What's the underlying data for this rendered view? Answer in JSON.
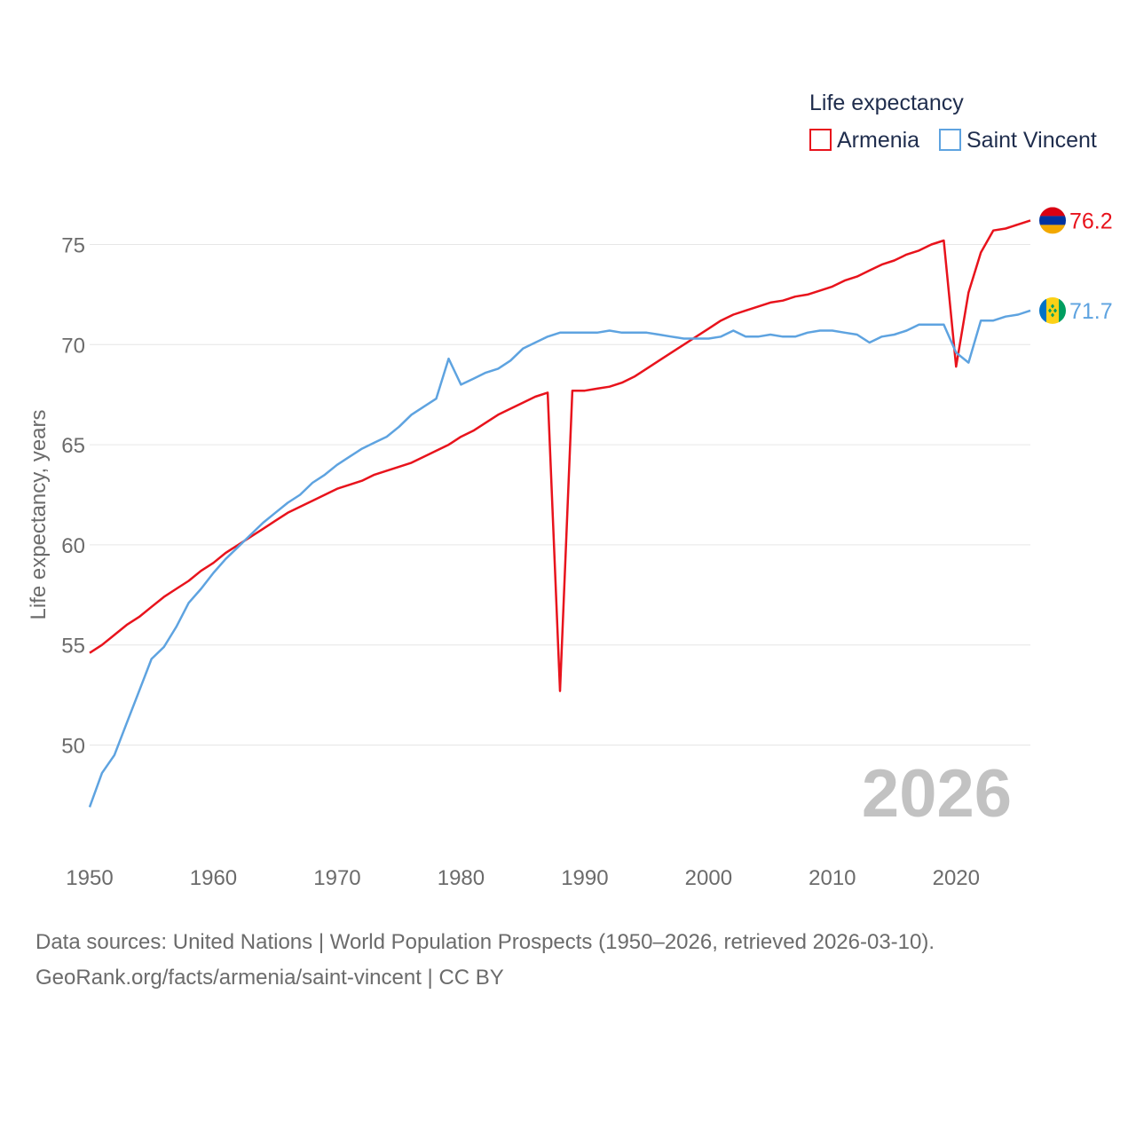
{
  "chart_data": {
    "type": "line",
    "legend_title": "Life expectancy",
    "ylabel": "Life expectancy, years",
    "xlabel": "",
    "current_year": "2026",
    "x_ticks": [
      1950,
      1960,
      1970,
      1980,
      1990,
      2000,
      2010,
      2020
    ],
    "y_ticks": [
      50,
      55,
      60,
      65,
      70,
      75
    ],
    "xlim": [
      1950,
      2026
    ],
    "ylim": [
      45.5,
      77.5
    ],
    "grid": true,
    "legend_position": "top-right",
    "x": [
      1950,
      1951,
      1952,
      1953,
      1954,
      1955,
      1956,
      1957,
      1958,
      1959,
      1960,
      1961,
      1962,
      1963,
      1964,
      1965,
      1966,
      1967,
      1968,
      1969,
      1970,
      1971,
      1972,
      1973,
      1974,
      1975,
      1976,
      1977,
      1978,
      1979,
      1980,
      1981,
      1982,
      1983,
      1984,
      1985,
      1986,
      1987,
      1988,
      1989,
      1990,
      1991,
      1992,
      1993,
      1994,
      1995,
      1996,
      1997,
      1998,
      1999,
      2000,
      2001,
      2002,
      2003,
      2004,
      2005,
      2006,
      2007,
      2008,
      2009,
      2010,
      2011,
      2012,
      2013,
      2014,
      2015,
      2016,
      2017,
      2018,
      2019,
      2020,
      2021,
      2022,
      2023,
      2024,
      2025,
      2026
    ],
    "series": [
      {
        "name": "Armenia",
        "color": "#e8131c",
        "end_label": "76.2",
        "flag": "armenia-flag",
        "values": [
          54.6,
          55.0,
          55.5,
          56.0,
          56.4,
          56.9,
          57.4,
          57.8,
          58.2,
          58.7,
          59.1,
          59.6,
          60.0,
          60.4,
          60.8,
          61.2,
          61.6,
          61.9,
          62.2,
          62.5,
          62.8,
          63.0,
          63.2,
          63.5,
          63.7,
          63.9,
          64.1,
          64.4,
          64.7,
          65.0,
          65.4,
          65.7,
          66.1,
          66.5,
          66.8,
          67.1,
          67.4,
          67.6,
          52.7,
          67.7,
          67.7,
          67.8,
          67.9,
          68.1,
          68.4,
          68.8,
          69.2,
          69.6,
          70.0,
          70.4,
          70.8,
          71.2,
          71.5,
          71.7,
          71.9,
          72.1,
          72.2,
          72.4,
          72.5,
          72.7,
          72.9,
          73.2,
          73.4,
          73.7,
          74.0,
          74.2,
          74.5,
          74.7,
          75.0,
          75.2,
          68.9,
          72.6,
          74.6,
          75.7,
          75.8,
          76.0,
          76.2
        ]
      },
      {
        "name": "Saint Vincent",
        "color": "#5ea3e0",
        "end_label": "71.7",
        "flag": "saint-vincent-flag",
        "values": [
          46.9,
          48.6,
          49.5,
          51.1,
          52.7,
          54.3,
          54.9,
          55.9,
          57.1,
          57.8,
          58.6,
          59.3,
          59.9,
          60.5,
          61.1,
          61.6,
          62.1,
          62.5,
          63.1,
          63.5,
          64.0,
          64.4,
          64.8,
          65.1,
          65.4,
          65.9,
          66.5,
          66.9,
          67.3,
          69.3,
          68.0,
          68.3,
          68.6,
          68.8,
          69.2,
          69.8,
          70.1,
          70.4,
          70.6,
          70.6,
          70.6,
          70.6,
          70.7,
          70.6,
          70.6,
          70.6,
          70.5,
          70.4,
          70.3,
          70.3,
          70.3,
          70.4,
          70.7,
          70.4,
          70.4,
          70.5,
          70.4,
          70.4,
          70.6,
          70.7,
          70.7,
          70.6,
          70.5,
          70.1,
          70.4,
          70.5,
          70.7,
          71.0,
          71.0,
          71.0,
          69.6,
          69.1,
          71.2,
          71.2,
          71.4,
          71.5,
          71.7
        ]
      }
    ]
  },
  "source": {
    "line1": "Data sources: United Nations | World Population Prospects (1950–2026, retrieved 2026-03-10).",
    "line2": "GeoRank.org/facts/armenia/saint-vincent | CC BY"
  }
}
